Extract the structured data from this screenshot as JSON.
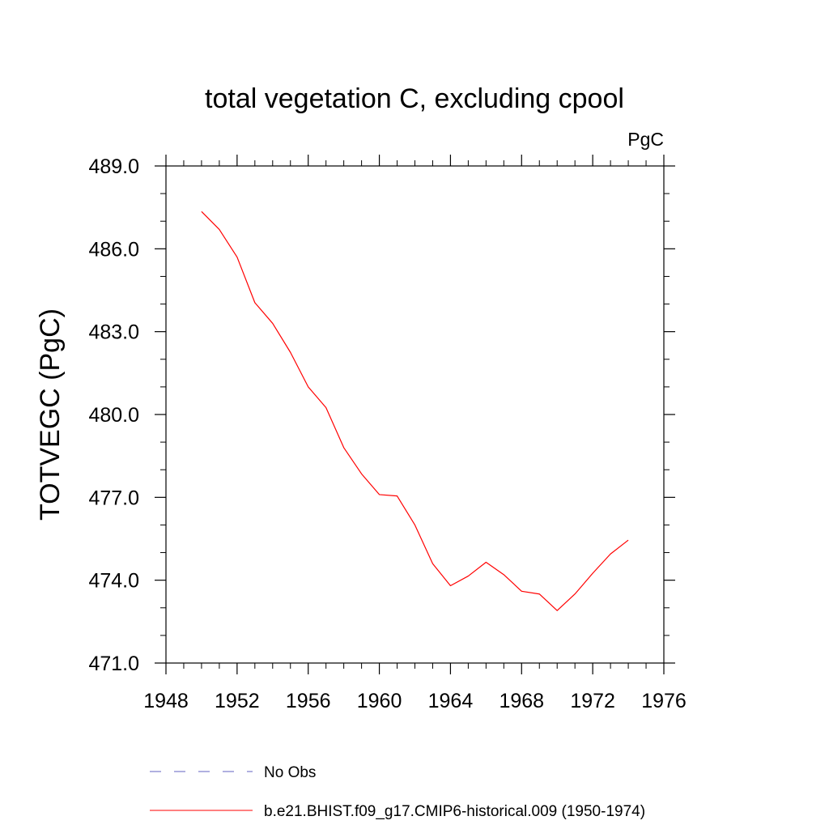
{
  "chart_data": {
    "type": "line",
    "title": "total vegetation C, excluding cpool",
    "units_label": "PgC",
    "ylabel": "TOTVEGC  (PgC)",
    "xlabel": "",
    "xlim": [
      1948,
      1976
    ],
    "ylim": [
      471.0,
      489.0
    ],
    "x_ticks": [
      1948,
      1952,
      1956,
      1960,
      1964,
      1968,
      1972,
      1976
    ],
    "y_ticks": [
      471.0,
      474.0,
      477.0,
      480.0,
      483.0,
      486.0,
      489.0
    ],
    "y_tick_labels": [
      "471.0",
      "474.0",
      "477.0",
      "480.0",
      "483.0",
      "486.0",
      "489.0"
    ],
    "grid": false,
    "legend_position": "bottom",
    "series": [
      {
        "name": "b.e21.BHIST.f09_g17.CMIP6-historical.009 (1950-1974)",
        "color": "#ff0000",
        "dash": "solid",
        "x": [
          1950,
          1951,
          1952,
          1953,
          1954,
          1955,
          1956,
          1957,
          1958,
          1959,
          1960,
          1961,
          1962,
          1963,
          1964,
          1965,
          1966,
          1967,
          1968,
          1969,
          1970,
          1971,
          1972,
          1973,
          1974
        ],
        "values": [
          487.35,
          486.7,
          485.7,
          484.05,
          483.3,
          482.25,
          481.0,
          480.25,
          478.8,
          477.85,
          477.1,
          477.05,
          476.0,
          474.6,
          473.8,
          474.15,
          474.65,
          474.2,
          473.6,
          473.5,
          472.9,
          473.5,
          474.25,
          474.95,
          475.45
        ]
      }
    ],
    "legend": [
      {
        "label": "No Obs",
        "color": "#6060c0",
        "dash": "dashed"
      },
      {
        "label": "b.e21.BHIST.f09_g17.CMIP6-historical.009 (1950-1974)",
        "color": "#ff0000",
        "dash": "solid"
      }
    ]
  }
}
